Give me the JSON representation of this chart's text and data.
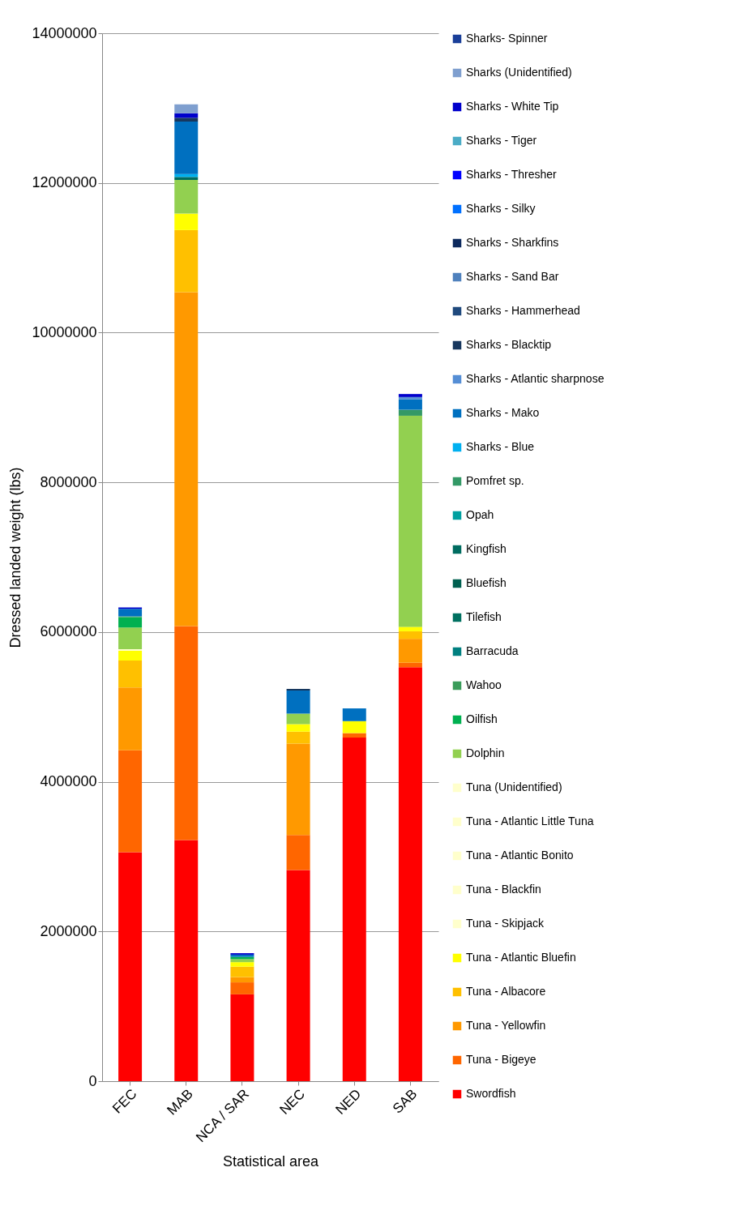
{
  "chart_data": {
    "type": "bar",
    "stacked": true,
    "xlabel": "Statistical area",
    "ylabel": "Dressed landed weight (lbs)",
    "categories": [
      "FEC",
      "MAB",
      "NCA / SAR",
      "NEC",
      "NED",
      "SAB"
    ],
    "ylim": [
      0,
      14000000
    ],
    "yticks": [
      0,
      2000000,
      4000000,
      6000000,
      8000000,
      10000000,
      12000000,
      14000000
    ],
    "grid": "y",
    "legend": "right",
    "series": [
      {
        "name": "Swordfish",
        "color": "#ff0000",
        "values": [
          3060000,
          3220000,
          1160000,
          2820000,
          4590000,
          5530000
        ]
      },
      {
        "name": "Tuna - Bigeye",
        "color": "#ff6600",
        "values": [
          1360000,
          2860000,
          160000,
          470000,
          60000,
          60000
        ]
      },
      {
        "name": "Tuna - Yellowfin",
        "color": "#ff9900",
        "values": [
          840000,
          4460000,
          70000,
          1220000,
          null,
          320000
        ]
      },
      {
        "name": "Tuna - Albacore",
        "color": "#ffc000",
        "values": [
          360000,
          830000,
          140000,
          160000,
          null,
          100000
        ]
      },
      {
        "name": "Tuna - Atlantic Bluefin",
        "color": "#ffff00",
        "values": [
          130000,
          220000,
          60000,
          100000,
          160000,
          60000
        ]
      },
      {
        "name": "Tuna - Skipjack",
        "color": "#ffffcc",
        "values": [
          null,
          null,
          null,
          null,
          null,
          null
        ]
      },
      {
        "name": "Tuna - Blackfin",
        "color": "#ffffcc",
        "values": [
          null,
          null,
          null,
          null,
          null,
          null
        ]
      },
      {
        "name": "Tuna - Atlantic Bonito",
        "color": "#ffffcc",
        "values": [
          null,
          null,
          null,
          null,
          null,
          null
        ]
      },
      {
        "name": "Tuna - Atlantic Little Tuna",
        "color": "#ffffcc",
        "values": [
          null,
          null,
          null,
          null,
          null,
          null
        ]
      },
      {
        "name": "Tuna (Unidentified)",
        "color": "#ffffcc",
        "values": [
          20000,
          null,
          null,
          null,
          null,
          null
        ]
      },
      {
        "name": "Dolphin",
        "color": "#92d050",
        "values": [
          290000,
          450000,
          40000,
          140000,
          null,
          2820000
        ]
      },
      {
        "name": "Oilfish",
        "color": "#00b050",
        "values": [
          140000,
          null,
          30000,
          null,
          null,
          null
        ]
      },
      {
        "name": "Wahoo",
        "color": "#3a9c5a",
        "values": [
          10000,
          null,
          null,
          null,
          null,
          null
        ]
      },
      {
        "name": "Barracuda",
        "color": "#008080",
        "values": [
          null,
          null,
          null,
          null,
          null,
          null
        ]
      },
      {
        "name": "Tilefish",
        "color": "#007060",
        "values": [
          null,
          null,
          null,
          null,
          null,
          null
        ]
      },
      {
        "name": "Bluefish",
        "color": "#006050",
        "values": [
          null,
          null,
          null,
          null,
          null,
          null
        ]
      },
      {
        "name": "Kingfish",
        "color": "#006c60",
        "values": [
          null,
          40000,
          null,
          null,
          null,
          null
        ]
      },
      {
        "name": "Opah",
        "color": "#00a0a0",
        "values": [
          null,
          null,
          null,
          null,
          null,
          null
        ]
      },
      {
        "name": "Pomfret sp.",
        "color": "#339966",
        "values": [
          null,
          null,
          null,
          null,
          null,
          80000
        ]
      },
      {
        "name": "Sharks - Blue",
        "color": "#00b0f0",
        "values": [
          null,
          40000,
          null,
          null,
          null,
          null
        ]
      },
      {
        "name": "Sharks - Mako",
        "color": "#0070c0",
        "values": [
          100000,
          700000,
          30000,
          310000,
          170000,
          140000
        ]
      },
      {
        "name": "Sharks - Atlantic sharpnose",
        "color": "#558ed5",
        "values": [
          null,
          null,
          null,
          null,
          null,
          30000
        ]
      },
      {
        "name": "Sharks - Blacktip",
        "color": "#17375e",
        "values": [
          null,
          50000,
          null,
          20000,
          null,
          null
        ]
      },
      {
        "name": "Sharks - Hammerhead",
        "color": "#1f497d",
        "values": [
          null,
          null,
          null,
          null,
          null,
          null
        ]
      },
      {
        "name": "Sharks - Sand Bar",
        "color": "#4f81bd",
        "values": [
          null,
          null,
          null,
          null,
          null,
          null
        ]
      },
      {
        "name": "Sharks - Sharkfins",
        "color": "#0d2a5e",
        "values": [
          null,
          null,
          null,
          null,
          null,
          null
        ]
      },
      {
        "name": "Sharks - Silky",
        "color": "#0070ff",
        "values": [
          null,
          null,
          null,
          null,
          null,
          null
        ]
      },
      {
        "name": "Sharks - Thresher",
        "color": "#0000ff",
        "values": [
          null,
          null,
          null,
          null,
          null,
          null
        ]
      },
      {
        "name": "Sharks - Tiger",
        "color": "#4bacc6",
        "values": [
          null,
          null,
          null,
          null,
          null,
          null
        ]
      },
      {
        "name": "Sharks - White Tip",
        "color": "#0000cc",
        "values": [
          20000,
          60000,
          20000,
          null,
          null,
          40000
        ]
      },
      {
        "name": "Sharks (Unidentified)",
        "color": "#7f9fcf",
        "values": [
          null,
          120000,
          null,
          null,
          null,
          null
        ]
      },
      {
        "name": "Sharks- Spinner",
        "color": "#1a3f99",
        "values": [
          null,
          null,
          null,
          null,
          null,
          null
        ]
      }
    ]
  }
}
